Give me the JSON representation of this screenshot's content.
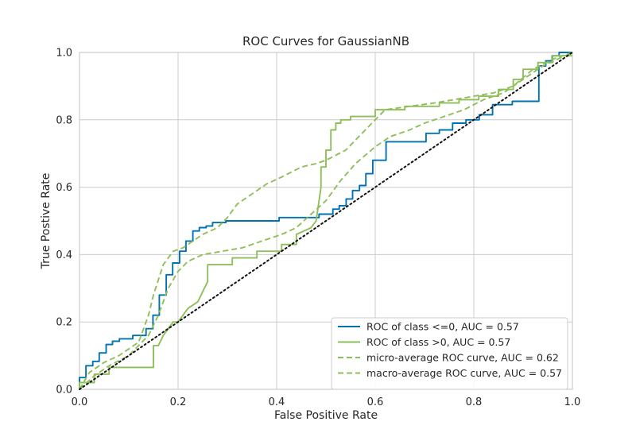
{
  "chart_data": {
    "type": "line",
    "title": "ROC Curves for GaussianNB",
    "xlabel": "False Positive Rate",
    "ylabel": "True Postive Rate",
    "xlim": [
      0.0,
      1.0
    ],
    "ylim": [
      0.0,
      1.0
    ],
    "xticks": [
      "0.0",
      "0.2",
      "0.4",
      "0.6",
      "0.8",
      "1.0"
    ],
    "yticks": [
      "0.0",
      "0.2",
      "0.4",
      "0.6",
      "0.8",
      "1.0"
    ],
    "grid": true,
    "legend_position": "lower-right",
    "series": [
      {
        "name": "ROC of class <=0, AUC = 0.57",
        "color": "#0072b2",
        "style": "solid",
        "x": [
          0.0,
          0.0,
          0.013,
          0.013,
          0.027,
          0.027,
          0.04,
          0.04,
          0.054,
          0.054,
          0.067,
          0.067,
          0.081,
          0.081,
          0.108,
          0.108,
          0.135,
          0.135,
          0.149,
          0.149,
          0.162,
          0.162,
          0.176,
          0.176,
          0.189,
          0.189,
          0.203,
          0.203,
          0.216,
          0.216,
          0.23,
          0.23,
          0.243,
          0.243,
          0.257,
          0.257,
          0.27,
          0.27,
          0.297,
          0.297,
          0.405,
          0.405,
          0.486,
          0.486,
          0.514,
          0.514,
          0.527,
          0.527,
          0.541,
          0.541,
          0.554,
          0.554,
          0.568,
          0.568,
          0.581,
          0.581,
          0.595,
          0.595,
          0.622,
          0.622,
          0.703,
          0.703,
          0.73,
          0.73,
          0.757,
          0.757,
          0.784,
          0.784,
          0.811,
          0.811,
          0.838,
          0.838,
          0.878,
          0.878,
          0.932,
          0.932,
          0.946,
          0.946,
          0.959,
          0.959,
          0.973,
          0.973,
          1.0
        ],
        "y": [
          0.0,
          0.035,
          0.035,
          0.07,
          0.07,
          0.083,
          0.083,
          0.108,
          0.108,
          0.133,
          0.133,
          0.143,
          0.143,
          0.15,
          0.15,
          0.16,
          0.16,
          0.18,
          0.18,
          0.22,
          0.22,
          0.28,
          0.28,
          0.34,
          0.34,
          0.375,
          0.375,
          0.41,
          0.41,
          0.44,
          0.44,
          0.47,
          0.47,
          0.48,
          0.48,
          0.485,
          0.485,
          0.495,
          0.495,
          0.5,
          0.5,
          0.51,
          0.51,
          0.52,
          0.52,
          0.535,
          0.535,
          0.545,
          0.545,
          0.565,
          0.565,
          0.59,
          0.59,
          0.605,
          0.605,
          0.64,
          0.64,
          0.68,
          0.68,
          0.735,
          0.735,
          0.76,
          0.76,
          0.77,
          0.77,
          0.79,
          0.79,
          0.8,
          0.8,
          0.815,
          0.815,
          0.845,
          0.845,
          0.855,
          0.855,
          0.96,
          0.96,
          0.975,
          0.975,
          0.99,
          0.99,
          1.0,
          1.0
        ]
      },
      {
        "name": "ROC of class >0, AUC = 0.57",
        "color": "#8fbf5a",
        "style": "solid",
        "x": [
          0.0,
          0.0,
          0.03,
          0.03,
          0.06,
          0.06,
          0.12,
          0.12,
          0.15,
          0.15,
          0.16,
          0.17,
          0.18,
          0.19,
          0.2,
          0.21,
          0.22,
          0.24,
          0.26,
          0.26,
          0.31,
          0.31,
          0.36,
          0.36,
          0.41,
          0.41,
          0.44,
          0.44,
          0.47,
          0.48,
          0.49,
          0.49,
          0.5,
          0.5,
          0.51,
          0.51,
          0.52,
          0.52,
          0.53,
          0.53,
          0.55,
          0.55,
          0.6,
          0.6,
          0.66,
          0.66,
          0.73,
          0.73,
          0.77,
          0.77,
          0.81,
          0.81,
          0.85,
          0.85,
          0.88,
          0.88,
          0.9,
          0.9,
          0.93,
          0.93,
          0.96,
          0.96,
          1.0
        ],
        "y": [
          0.0,
          0.02,
          0.02,
          0.045,
          0.045,
          0.065,
          0.065,
          0.065,
          0.065,
          0.13,
          0.13,
          0.16,
          0.18,
          0.2,
          0.2,
          0.22,
          0.24,
          0.26,
          0.32,
          0.37,
          0.37,
          0.39,
          0.39,
          0.41,
          0.41,
          0.43,
          0.43,
          0.46,
          0.48,
          0.5,
          0.6,
          0.66,
          0.66,
          0.71,
          0.71,
          0.77,
          0.77,
          0.79,
          0.79,
          0.8,
          0.8,
          0.81,
          0.81,
          0.83,
          0.83,
          0.84,
          0.84,
          0.85,
          0.85,
          0.86,
          0.86,
          0.87,
          0.87,
          0.89,
          0.89,
          0.92,
          0.92,
          0.95,
          0.95,
          0.97,
          0.97,
          0.99,
          0.99
        ]
      },
      {
        "name": "micro-average ROC curve, AUC = 0.62",
        "color": "#8fbf5a",
        "style": "dashed",
        "x": [
          0.0,
          0.02,
          0.05,
          0.08,
          0.12,
          0.14,
          0.15,
          0.17,
          0.19,
          0.21,
          0.23,
          0.25,
          0.28,
          0.3,
          0.32,
          0.35,
          0.38,
          0.41,
          0.45,
          0.48,
          0.5,
          0.54,
          0.58,
          0.62,
          0.67,
          0.72,
          0.76,
          0.8,
          0.84,
          0.88,
          0.92,
          0.96,
          1.0
        ],
        "y": [
          0.0,
          0.05,
          0.08,
          0.1,
          0.14,
          0.22,
          0.28,
          0.37,
          0.41,
          0.42,
          0.44,
          0.46,
          0.48,
          0.51,
          0.55,
          0.58,
          0.61,
          0.63,
          0.66,
          0.67,
          0.68,
          0.71,
          0.77,
          0.83,
          0.84,
          0.85,
          0.86,
          0.87,
          0.88,
          0.9,
          0.95,
          0.98,
          1.0
        ]
      },
      {
        "name": "macro-average ROC curve, AUC = 0.57",
        "color": "#8fbf5a",
        "style": "dashed",
        "x": [
          0.0,
          0.03,
          0.06,
          0.1,
          0.14,
          0.16,
          0.18,
          0.2,
          0.22,
          0.25,
          0.29,
          0.33,
          0.37,
          0.41,
          0.44,
          0.47,
          0.5,
          0.53,
          0.56,
          0.6,
          0.63,
          0.67,
          0.7,
          0.74,
          0.78,
          0.82,
          0.86,
          0.9,
          0.94,
          1.0
        ],
        "y": [
          0.0,
          0.04,
          0.07,
          0.1,
          0.16,
          0.22,
          0.3,
          0.35,
          0.38,
          0.4,
          0.41,
          0.42,
          0.44,
          0.46,
          0.48,
          0.52,
          0.56,
          0.62,
          0.67,
          0.72,
          0.75,
          0.77,
          0.79,
          0.81,
          0.83,
          0.86,
          0.88,
          0.92,
          0.96,
          1.0
        ]
      },
      {
        "name": "",
        "color": "#111111",
        "style": "dotted",
        "x": [
          0.0,
          1.0
        ],
        "y": [
          0.0,
          1.0
        ]
      }
    ]
  }
}
